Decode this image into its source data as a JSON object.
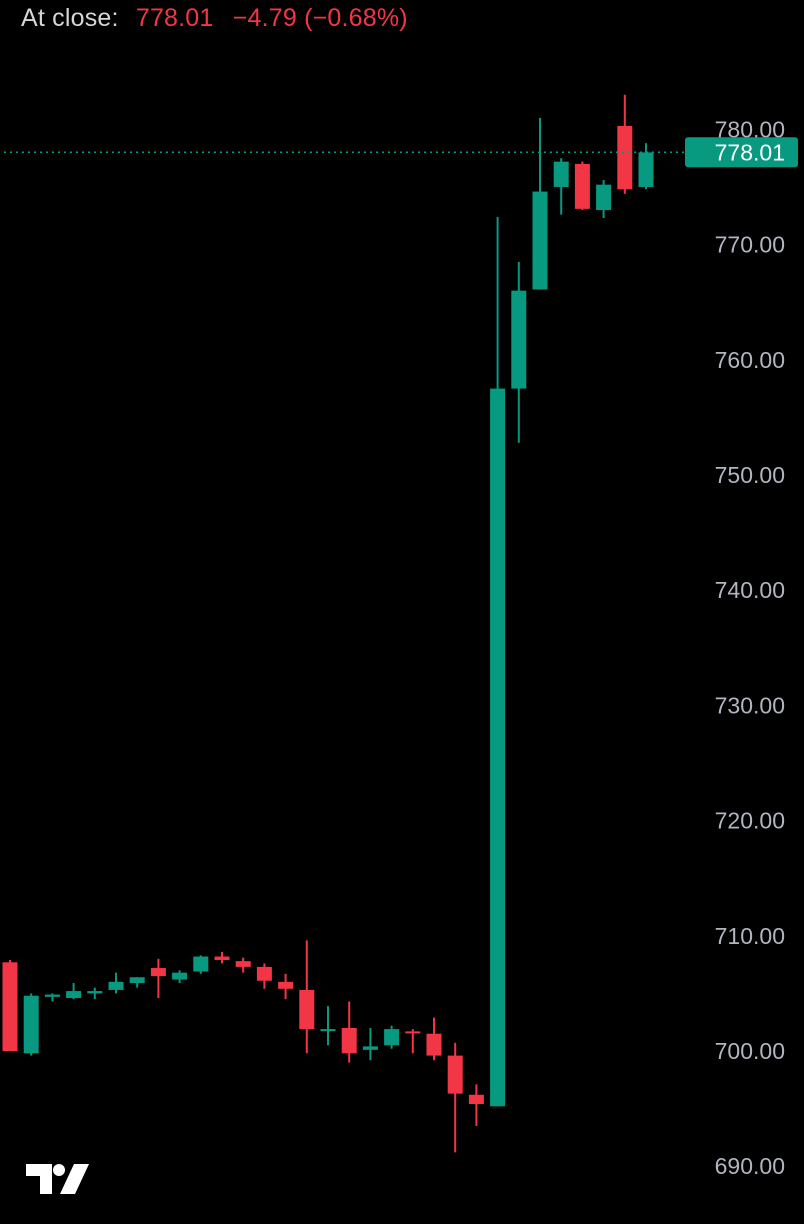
{
  "header": {
    "label": "At close:",
    "price": "778.01",
    "change": "−4.79 (−0.68%)"
  },
  "chart_data": {
    "type": "candlestick",
    "ylim": [
      687.5,
      785.5
    ],
    "y_ticks": [
      "690.00",
      "700.00",
      "710.00",
      "720.00",
      "730.00",
      "740.00",
      "750.00",
      "760.00",
      "770.00",
      "780.00"
    ],
    "y_tick_values": [
      690,
      700,
      710,
      720,
      730,
      740,
      750,
      760,
      770,
      780
    ],
    "last_price": 778.01,
    "last_price_label": "778.01",
    "candles": [
      {
        "o": 707.7,
        "h": 707.9,
        "l": 700.0,
        "c": 700.0
      },
      {
        "o": 699.8,
        "h": 705.0,
        "l": 699.6,
        "c": 704.8
      },
      {
        "o": 704.7,
        "h": 705.0,
        "l": 704.3,
        "c": 704.9
      },
      {
        "o": 704.6,
        "h": 705.9,
        "l": 704.5,
        "c": 705.2
      },
      {
        "o": 705.0,
        "h": 705.5,
        "l": 704.5,
        "c": 705.2
      },
      {
        "o": 705.3,
        "h": 706.8,
        "l": 705.0,
        "c": 706.0
      },
      {
        "o": 705.9,
        "h": 706.4,
        "l": 705.5,
        "c": 706.4
      },
      {
        "o": 707.2,
        "h": 708.0,
        "l": 704.6,
        "c": 706.5
      },
      {
        "o": 706.2,
        "h": 707.0,
        "l": 705.9,
        "c": 706.8
      },
      {
        "o": 706.9,
        "h": 708.3,
        "l": 706.7,
        "c": 708.2
      },
      {
        "o": 708.2,
        "h": 708.6,
        "l": 707.6,
        "c": 707.9
      },
      {
        "o": 707.8,
        "h": 708.1,
        "l": 706.8,
        "c": 707.3
      },
      {
        "o": 707.3,
        "h": 707.6,
        "l": 705.4,
        "c": 706.1
      },
      {
        "o": 706.0,
        "h": 706.7,
        "l": 704.5,
        "c": 705.4
      },
      {
        "o": 705.3,
        "h": 709.6,
        "l": 699.8,
        "c": 701.9
      },
      {
        "o": 701.9,
        "h": 703.9,
        "l": 700.5,
        "c": 701.9
      },
      {
        "o": 702.0,
        "h": 704.3,
        "l": 699.0,
        "c": 699.8
      },
      {
        "o": 700.1,
        "h": 702.0,
        "l": 699.2,
        "c": 700.4
      },
      {
        "o": 700.5,
        "h": 702.2,
        "l": 700.2,
        "c": 701.9
      },
      {
        "o": 701.7,
        "h": 701.9,
        "l": 699.8,
        "c": 701.6
      },
      {
        "o": 701.5,
        "h": 702.9,
        "l": 699.2,
        "c": 699.6
      },
      {
        "o": 699.6,
        "h": 700.7,
        "l": 691.2,
        "c": 696.3
      },
      {
        "o": 696.2,
        "h": 697.1,
        "l": 693.5,
        "c": 695.4
      },
      {
        "o": 695.2,
        "h": 772.4,
        "l": 695.2,
        "c": 757.5
      },
      {
        "o": 757.5,
        "h": 768.5,
        "l": 752.8,
        "c": 766.0
      },
      {
        "o": 766.1,
        "h": 781.0,
        "l": 766.1,
        "c": 774.6
      },
      {
        "o": 775.0,
        "h": 777.5,
        "l": 772.6,
        "c": 777.2
      },
      {
        "o": 777.0,
        "h": 777.2,
        "l": 773.0,
        "c": 773.1
      },
      {
        "o": 773.0,
        "h": 775.6,
        "l": 772.3,
        "c": 775.2
      },
      {
        "o": 780.3,
        "h": 783.0,
        "l": 774.4,
        "c": 774.8
      },
      {
        "o": 775.0,
        "h": 778.8,
        "l": 774.8,
        "c": 778.0
      }
    ]
  },
  "colors": {
    "up": "#089981",
    "down": "#f23645",
    "axis_text": "#b2b5be",
    "price_tag": "#089981",
    "price_line": "#089981",
    "background": "#000000"
  },
  "logo": {
    "name": "tradingview-logo"
  }
}
